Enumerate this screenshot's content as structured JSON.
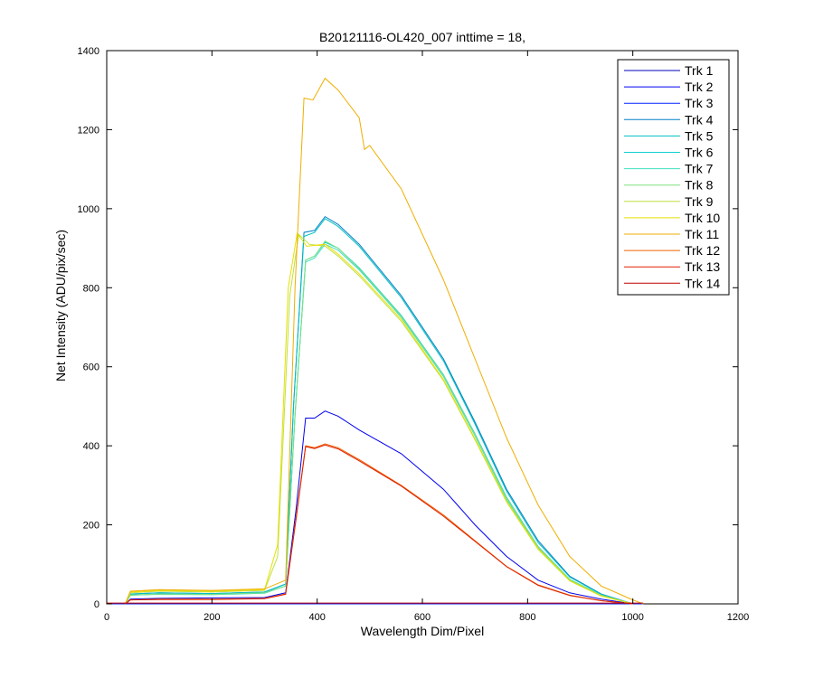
{
  "chart_data": {
    "type": "line",
    "title": "B20121116-OL420_007 inttime = 18,",
    "xlabel": "Wavelength Dim/Pixel",
    "ylabel": "Net Intensity (ADU/pix/sec)",
    "xlim": [
      0,
      1200
    ],
    "ylim": [
      0,
      1400
    ],
    "xticks": [
      0,
      200,
      400,
      600,
      800,
      1000,
      1200
    ],
    "yticks": [
      0,
      200,
      400,
      600,
      800,
      1000,
      1200,
      1400
    ],
    "grid": false,
    "legend_position": "top-right",
    "series": [
      {
        "name": "Trk 1",
        "color": "#0000bf",
        "points": [
          [
            0,
            0
          ],
          [
            1020,
            0
          ]
        ]
      },
      {
        "name": "Trk 2",
        "color": "#0000ef",
        "points": [
          [
            35,
            0
          ],
          [
            45,
            12
          ],
          [
            100,
            14
          ],
          [
            200,
            15
          ],
          [
            300,
            16
          ],
          [
            340,
            28
          ],
          [
            360,
            240
          ],
          [
            378,
            470
          ],
          [
            395,
            470
          ],
          [
            415,
            488
          ],
          [
            440,
            475
          ],
          [
            480,
            440
          ],
          [
            560,
            380
          ],
          [
            640,
            290
          ],
          [
            700,
            200
          ],
          [
            760,
            120
          ],
          [
            820,
            60
          ],
          [
            880,
            28
          ],
          [
            940,
            12
          ],
          [
            1000,
            0
          ]
        ]
      },
      {
        "name": "Trk 3",
        "color": "#0020ff",
        "points": [
          [
            0,
            0
          ],
          [
            1020,
            0
          ]
        ]
      },
      {
        "name": "Trk 4",
        "color": "#0080c8",
        "points": [
          [
            35,
            0
          ],
          [
            45,
            25
          ],
          [
            100,
            28
          ],
          [
            200,
            26
          ],
          [
            300,
            30
          ],
          [
            340,
            50
          ],
          [
            355,
            500
          ],
          [
            375,
            940
          ],
          [
            395,
            945
          ],
          [
            415,
            980
          ],
          [
            440,
            960
          ],
          [
            480,
            910
          ],
          [
            560,
            780
          ],
          [
            640,
            620
          ],
          [
            700,
            460
          ],
          [
            760,
            290
          ],
          [
            820,
            160
          ],
          [
            880,
            70
          ],
          [
            940,
            25
          ],
          [
            1000,
            0
          ]
        ]
      },
      {
        "name": "Trk 5",
        "color": "#00bfbf",
        "points": [
          [
            35,
            0
          ],
          [
            45,
            25
          ],
          [
            100,
            28
          ],
          [
            200,
            26
          ],
          [
            300,
            30
          ],
          [
            340,
            50
          ],
          [
            355,
            500
          ],
          [
            375,
            930
          ],
          [
            395,
            940
          ],
          [
            415,
            975
          ],
          [
            440,
            955
          ],
          [
            480,
            905
          ],
          [
            560,
            775
          ],
          [
            640,
            615
          ],
          [
            700,
            455
          ],
          [
            760,
            285
          ],
          [
            820,
            155
          ],
          [
            880,
            68
          ],
          [
            940,
            24
          ],
          [
            1000,
            0
          ]
        ]
      },
      {
        "name": "Trk 6",
        "color": "#10d0d0",
        "points": [
          [
            35,
            0
          ],
          [
            45,
            22
          ],
          [
            100,
            25
          ],
          [
            200,
            24
          ],
          [
            300,
            28
          ],
          [
            340,
            45
          ],
          [
            358,
            480
          ],
          [
            378,
            870
          ],
          [
            395,
            880
          ],
          [
            415,
            915
          ],
          [
            440,
            900
          ],
          [
            480,
            850
          ],
          [
            560,
            730
          ],
          [
            640,
            580
          ],
          [
            700,
            430
          ],
          [
            760,
            270
          ],
          [
            820,
            145
          ],
          [
            880,
            62
          ],
          [
            940,
            22
          ],
          [
            1000,
            0
          ]
        ]
      },
      {
        "name": "Trk 7",
        "color": "#40e0c0",
        "points": [
          [
            35,
            0
          ],
          [
            45,
            22
          ],
          [
            100,
            24
          ],
          [
            200,
            23
          ],
          [
            300,
            27
          ],
          [
            340,
            45
          ],
          [
            358,
            475
          ],
          [
            378,
            865
          ],
          [
            395,
            875
          ],
          [
            415,
            910
          ],
          [
            440,
            895
          ],
          [
            480,
            845
          ],
          [
            560,
            725
          ],
          [
            640,
            575
          ],
          [
            700,
            425
          ],
          [
            760,
            265
          ],
          [
            820,
            142
          ],
          [
            880,
            60
          ],
          [
            940,
            21
          ],
          [
            1000,
            0
          ]
        ]
      },
      {
        "name": "Trk 8",
        "color": "#80e080",
        "points": [
          [
            35,
            0
          ],
          [
            45,
            22
          ],
          [
            100,
            25
          ],
          [
            200,
            24
          ],
          [
            300,
            28
          ],
          [
            340,
            45
          ],
          [
            358,
            480
          ],
          [
            378,
            870
          ],
          [
            395,
            880
          ],
          [
            415,
            918
          ],
          [
            440,
            900
          ],
          [
            480,
            848
          ],
          [
            560,
            728
          ],
          [
            640,
            578
          ],
          [
            700,
            428
          ],
          [
            760,
            268
          ],
          [
            820,
            144
          ],
          [
            880,
            61
          ],
          [
            940,
            22
          ],
          [
            1000,
            0
          ]
        ]
      },
      {
        "name": "Trk 9",
        "color": "#c0e040",
        "points": [
          [
            35,
            0
          ],
          [
            45,
            28
          ],
          [
            100,
            32
          ],
          [
            200,
            30
          ],
          [
            300,
            34
          ],
          [
            325,
            120
          ],
          [
            348,
            780
          ],
          [
            365,
            935
          ],
          [
            385,
            910
          ],
          [
            415,
            905
          ],
          [
            440,
            880
          ],
          [
            480,
            830
          ],
          [
            560,
            715
          ],
          [
            640,
            565
          ],
          [
            700,
            415
          ],
          [
            760,
            258
          ],
          [
            820,
            138
          ],
          [
            880,
            58
          ],
          [
            940,
            20
          ],
          [
            1000,
            0
          ]
        ]
      },
      {
        "name": "Trk 10",
        "color": "#e8e000",
        "points": [
          [
            35,
            0
          ],
          [
            45,
            30
          ],
          [
            100,
            34
          ],
          [
            200,
            32
          ],
          [
            300,
            36
          ],
          [
            325,
            150
          ],
          [
            345,
            800
          ],
          [
            362,
            938
          ],
          [
            380,
            905
          ],
          [
            415,
            910
          ],
          [
            440,
            885
          ],
          [
            480,
            835
          ],
          [
            560,
            720
          ],
          [
            640,
            568
          ],
          [
            700,
            418
          ],
          [
            760,
            260
          ],
          [
            820,
            140
          ],
          [
            880,
            59
          ],
          [
            940,
            20
          ],
          [
            1000,
            0
          ]
        ]
      },
      {
        "name": "Trk 11",
        "color": "#efae00",
        "points": [
          [
            35,
            0
          ],
          [
            45,
            32
          ],
          [
            100,
            36
          ],
          [
            200,
            34
          ],
          [
            300,
            38
          ],
          [
            340,
            60
          ],
          [
            358,
            800
          ],
          [
            375,
            1280
          ],
          [
            392,
            1275
          ],
          [
            415,
            1330
          ],
          [
            440,
            1300
          ],
          [
            480,
            1230
          ],
          [
            490,
            1150
          ],
          [
            500,
            1160
          ],
          [
            560,
            1050
          ],
          [
            640,
            820
          ],
          [
            700,
            620
          ],
          [
            760,
            420
          ],
          [
            820,
            250
          ],
          [
            880,
            120
          ],
          [
            940,
            45
          ],
          [
            1000,
            10
          ],
          [
            1020,
            0
          ]
        ]
      },
      {
        "name": "Trk 12",
        "color": "#ef6000",
        "points": [
          [
            35,
            0
          ],
          [
            45,
            10
          ],
          [
            100,
            12
          ],
          [
            200,
            12
          ],
          [
            300,
            14
          ],
          [
            340,
            25
          ],
          [
            360,
            220
          ],
          [
            378,
            400
          ],
          [
            395,
            395
          ],
          [
            415,
            405
          ],
          [
            440,
            395
          ],
          [
            480,
            365
          ],
          [
            560,
            300
          ],
          [
            640,
            225
          ],
          [
            700,
            160
          ],
          [
            760,
            95
          ],
          [
            820,
            48
          ],
          [
            880,
            22
          ],
          [
            940,
            8
          ],
          [
            1000,
            0
          ]
        ]
      },
      {
        "name": "Trk 13",
        "color": "#df2000",
        "points": [
          [
            35,
            0
          ],
          [
            45,
            10
          ],
          [
            100,
            11
          ],
          [
            200,
            11
          ],
          [
            300,
            13
          ],
          [
            340,
            24
          ],
          [
            360,
            215
          ],
          [
            378,
            398
          ],
          [
            395,
            393
          ],
          [
            415,
            402
          ],
          [
            440,
            392
          ],
          [
            480,
            362
          ],
          [
            560,
            298
          ],
          [
            640,
            222
          ],
          [
            700,
            158
          ],
          [
            760,
            94
          ],
          [
            820,
            47
          ],
          [
            880,
            21
          ],
          [
            940,
            8
          ],
          [
            1000,
            0
          ]
        ]
      },
      {
        "name": "Trk 14",
        "color": "#bf0000",
        "points": [
          [
            0,
            2
          ],
          [
            1020,
            2
          ]
        ]
      }
    ]
  }
}
